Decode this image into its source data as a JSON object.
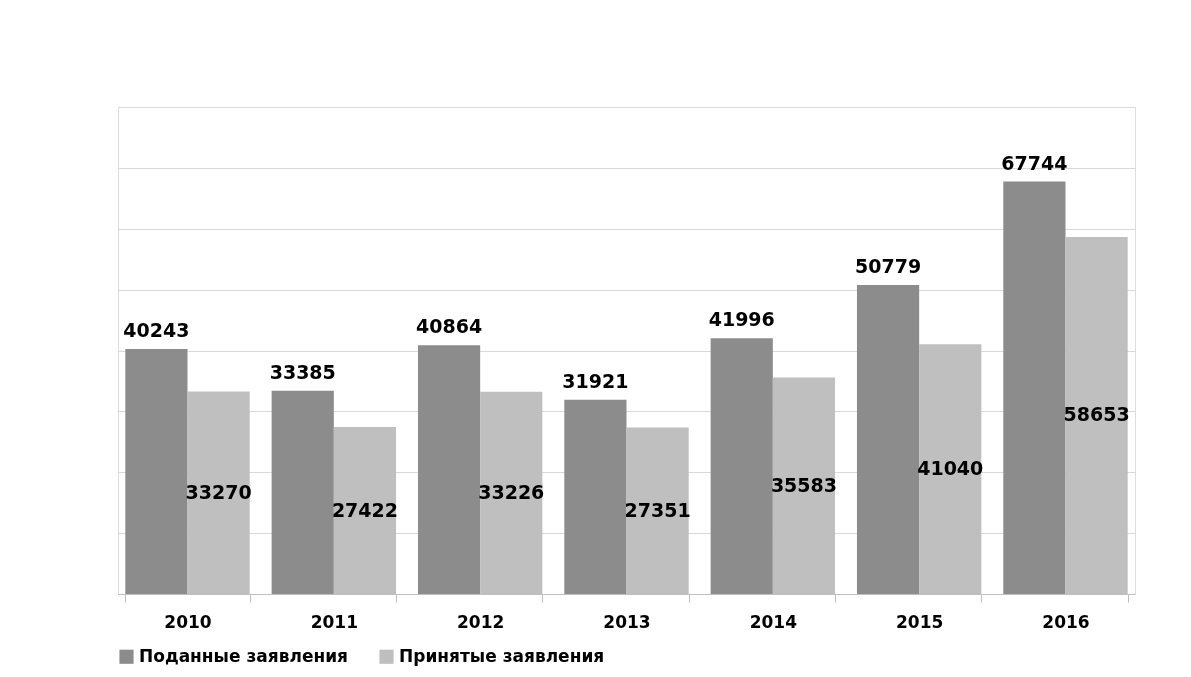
{
  "chart_data": {
    "type": "bar",
    "categories": [
      "2010",
      "2011",
      "2012",
      "2013",
      "2014",
      "2015",
      "2016"
    ],
    "series": [
      {
        "name": "Поданные заявления",
        "color": "#8c8c8c",
        "values": [
          40243,
          33385,
          40864,
          31921,
          41996,
          50779,
          67744
        ]
      },
      {
        "name": "Принятые заявления",
        "color": "#bfbfbf",
        "values": [
          33270,
          27422,
          33226,
          27351,
          35583,
          41040,
          58653
        ]
      }
    ],
    "ylim": [
      0,
      80000
    ],
    "yticks": [
      {
        "value": 0,
        "label": null
      },
      {
        "value": 10000,
        "label": null
      },
      {
        "value": 20000,
        "label": null
      },
      {
        "value": 30000,
        "label": null
      },
      {
        "value": 40000,
        "label": null
      },
      {
        "value": 50000,
        "label": null
      },
      {
        "value": 60000,
        "label": null
      },
      {
        "value": 70000,
        "label": null
      },
      {
        "value": 80000,
        "label": null
      }
    ],
    "grid": "y",
    "legend": "bottom",
    "data_labels": true,
    "tick_labels": "x"
  }
}
